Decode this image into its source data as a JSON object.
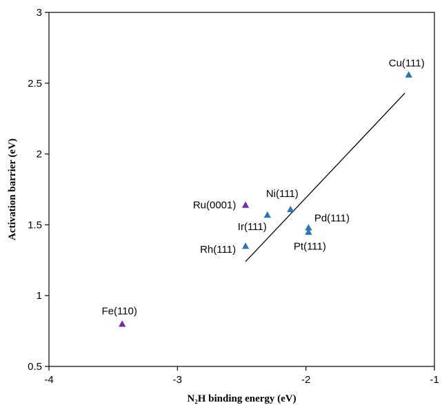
{
  "chart_data": {
    "type": "scatter",
    "xlabel": "N₂H binding energy (eV)",
    "ylabel": "Activation barrier (eV)",
    "xlim": [
      -4,
      -1
    ],
    "ylim": [
      0.5,
      3
    ],
    "xticks": [
      -4,
      -3,
      -2,
      -1
    ],
    "yticks": [
      0.5,
      1,
      1.5,
      2,
      2.5,
      3
    ],
    "xtick_labels": [
      "-4",
      "-3",
      "-2",
      "-1"
    ],
    "ytick_labels": [
      "0.5",
      "1",
      "1.5",
      "2",
      "2.5",
      "3"
    ],
    "grid": false,
    "colors": {
      "blue": "#2e75b6",
      "purple": "#7030a0"
    },
    "points": [
      {
        "label": "Cu(111)",
        "x": -1.2,
        "y": 2.56,
        "color": "blue"
      },
      {
        "label": "Ni(111)",
        "x": -2.12,
        "y": 1.61,
        "color": "blue"
      },
      {
        "label": "Ir(111)",
        "x": -2.3,
        "y": 1.57,
        "color": "blue"
      },
      {
        "label": "Pd(111)",
        "x": -1.98,
        "y": 1.48,
        "color": "blue"
      },
      {
        "label": "Pt(111)",
        "x": -1.98,
        "y": 1.45,
        "color": "blue"
      },
      {
        "label": "Rh(111)",
        "x": -2.47,
        "y": 1.35,
        "color": "blue"
      },
      {
        "label": "Ru(0001)",
        "x": -2.47,
        "y": 1.64,
        "color": "purple"
      },
      {
        "label": "Fe(110)",
        "x": -3.43,
        "y": 0.8,
        "color": "purple"
      }
    ],
    "trendline": {
      "x": [
        -2.47,
        -1.23
      ],
      "y": [
        1.24,
        2.43
      ]
    }
  }
}
